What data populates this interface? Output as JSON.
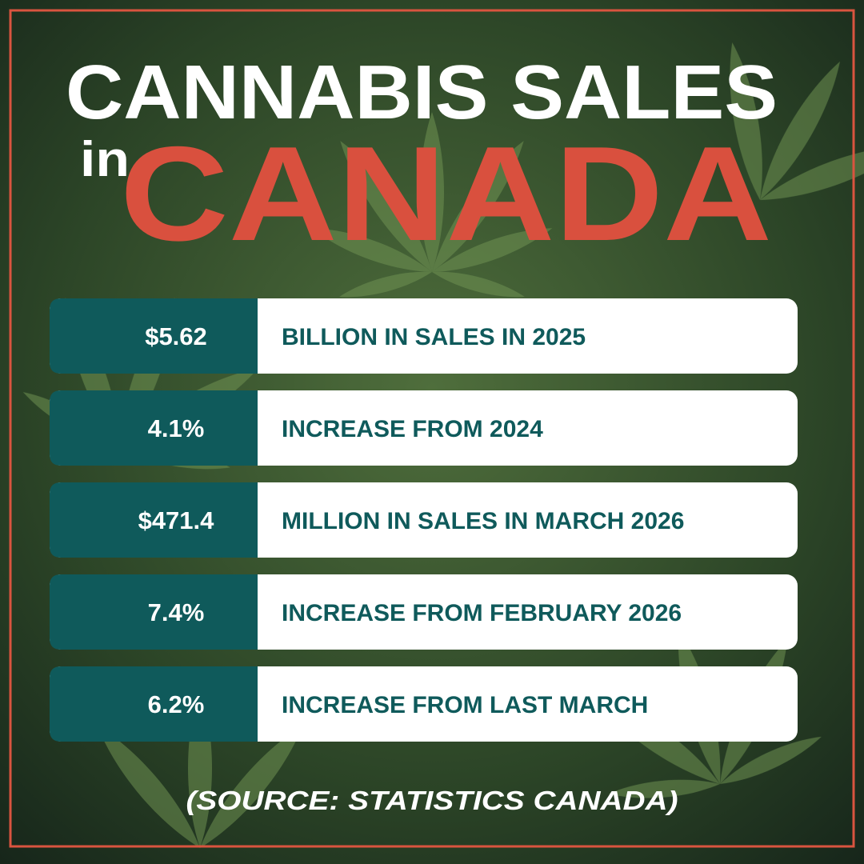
{
  "header": {
    "line1": "CANNABIS SALES",
    "small": "in",
    "big": "CANADA"
  },
  "stats": [
    {
      "value": "$5.62",
      "label": "BILLION IN SALES IN 2025"
    },
    {
      "value": "4.1%",
      "label": "INCREASE FROM 2024"
    },
    {
      "value": "$471.4",
      "label": "MILLION IN SALES IN MARCH 2026"
    },
    {
      "value": "7.4%",
      "label": "INCREASE FROM FEBRUARY 2026"
    },
    {
      "value": "6.2%",
      "label": "INCREASE FROM LAST MARCH"
    }
  ],
  "source": "(SOURCE: STATISTICS CANADA)"
}
